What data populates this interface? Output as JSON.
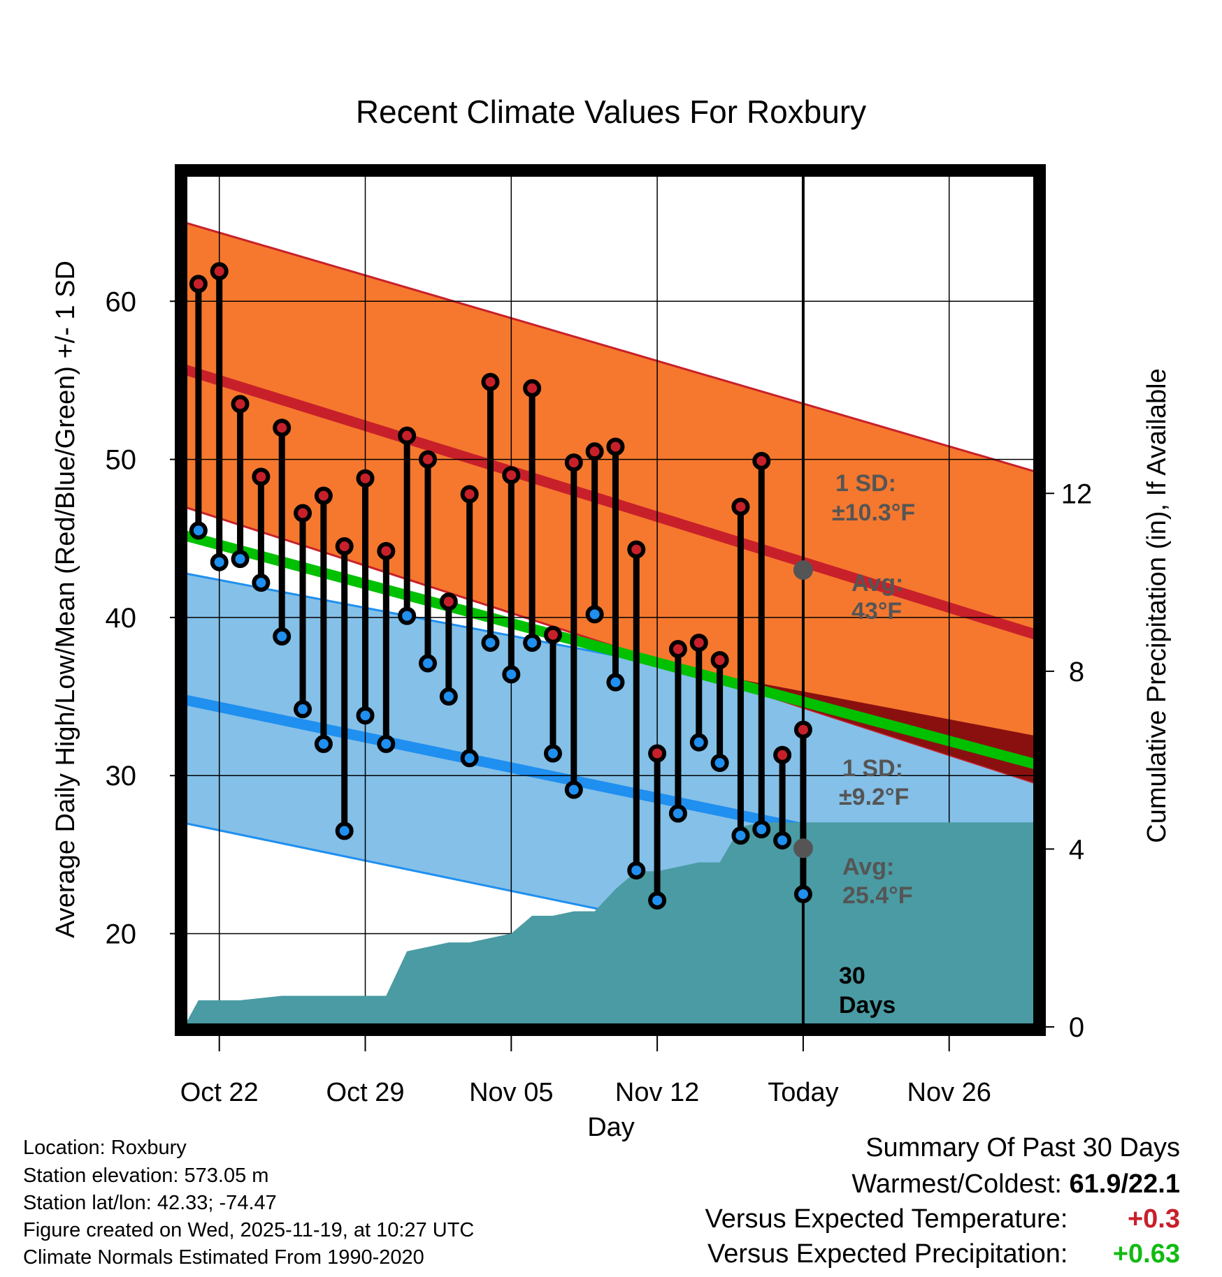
{
  "chart_data": {
    "type": "line",
    "title": "Recent Climate Values For Roxbury",
    "xlabel": "Day",
    "ylabel": "Average Daily High/Low/Mean (Red/Blue/Green) +/- 1 SD",
    "y2label": "Cumulative Precipitation (in), If Available",
    "ylim": [
      14.1,
      68.1
    ],
    "y2lim": [
      0,
      19.2
    ],
    "yticks": [
      20,
      30,
      40,
      50,
      60
    ],
    "y2ticks": [
      0,
      4,
      8,
      12
    ],
    "xlim": [
      -0.7,
      40.2
    ],
    "xtick_days": [
      1,
      8,
      15,
      22,
      29,
      36
    ],
    "xtick_labels": [
      "Oct 22",
      "Oct 29",
      "Nov 05",
      "Nov 12",
      "Today",
      "Nov 26"
    ],
    "today_day": 29,
    "normals": {
      "day": [
        -0.7,
        40.2
      ],
      "high_mean": [
        55.7,
        38.9
      ],
      "high_upper": [
        65.0,
        49.2
      ],
      "high_lower": [
        47.0,
        29.5
      ],
      "low_mean": [
        34.8,
        23.6
      ],
      "low_upper": [
        42.8,
        32.5
      ],
      "low_lower": [
        27.0,
        15.8
      ],
      "mean": [
        45.2,
        30.7
      ]
    },
    "series": [
      {
        "name": "Daily High",
        "color": "#c8202a",
        "day": [
          0,
          1,
          2,
          3,
          4,
          5,
          6,
          7,
          8,
          9,
          10,
          11,
          12,
          13,
          14,
          15,
          16,
          17,
          18,
          19,
          20,
          21,
          22,
          23,
          24,
          25,
          26,
          27,
          28
        ],
        "values": [
          61.1,
          61.9,
          53.5,
          48.9,
          52.0,
          46.6,
          47.7,
          44.5,
          48.8,
          44.2,
          51.5,
          50.0,
          41.0,
          47.8,
          54.9,
          49.0,
          54.5,
          38.9,
          49.8,
          50.5,
          50.8,
          44.3,
          31.4,
          38.0,
          38.4,
          37.3,
          47.0,
          49.9,
          31.3
        ]
      },
      {
        "name": "Daily Low",
        "color": "#1f8ff0",
        "day": [
          0,
          1,
          2,
          3,
          4,
          5,
          6,
          7,
          8,
          9,
          10,
          11,
          12,
          13,
          14,
          15,
          16,
          17,
          18,
          19,
          20,
          21,
          22,
          23,
          24,
          25,
          26,
          27,
          28
        ],
        "values": [
          45.5,
          43.5,
          43.7,
          42.2,
          38.8,
          34.2,
          32.0,
          26.5,
          33.8,
          32.0,
          40.1,
          37.1,
          35.0,
          31.1,
          38.4,
          36.4,
          38.4,
          31.4,
          29.1,
          40.2,
          35.9,
          24.0,
          22.1,
          27.6,
          32.1,
          30.8,
          26.2,
          26.6,
          25.9
        ]
      },
      {
        "name": "Extra High",
        "day": [
          29
        ],
        "values": [
          32.9
        ]
      },
      {
        "name": "Extra Low",
        "day": [
          29
        ],
        "values": [
          22.5
        ]
      }
    ],
    "precipitation": {
      "name": "Cumulative Precipitation",
      "color": "#4a9ba3",
      "day": [
        -0.7,
        0,
        2,
        4,
        5,
        6,
        7,
        8,
        9,
        10,
        11,
        12,
        13,
        14,
        15,
        16,
        17,
        18,
        19,
        20,
        21,
        22,
        23,
        24,
        25,
        26,
        27,
        28,
        29,
        40.2
      ],
      "values": [
        0,
        0.6,
        0.6,
        0.7,
        0.7,
        0.7,
        0.7,
        0.7,
        0.7,
        1.7,
        1.8,
        1.9,
        1.9,
        2.0,
        2.1,
        2.5,
        2.5,
        2.6,
        2.6,
        3.1,
        3.5,
        3.5,
        3.6,
        3.7,
        3.7,
        4.5,
        4.6,
        4.6,
        4.6,
        4.6
      ]
    },
    "annotations": {
      "high_sd": "1 SD:",
      "high_sd_val": "±10.3°F",
      "high_avg": "Avg:",
      "high_avg_val": "43°F",
      "low_sd": "1 SD:",
      "low_sd_val": "±9.2°F",
      "low_avg": "Avg:",
      "low_avg_val": "25.4°F",
      "days_num": "30",
      "days_label": "Days"
    },
    "annotation_values": {
      "high_avg": 43.0,
      "low_avg": 25.4
    },
    "colors": {
      "high_band": "#f5782e",
      "high_line": "#c8202a",
      "low_band": "#84c0e8",
      "low_line": "#1f8ff0",
      "mean_line": "#00c000",
      "overlap": "#8a1010",
      "note": "#555555"
    }
  },
  "info": {
    "location": "Location: Roxbury",
    "elevation": "Station elevation: 573.05 m",
    "latlon": "Station lat/lon: 42.33; -74.47",
    "created": "Figure created on Wed, 2025-11-19, at 10:27 UTC",
    "normals": "Climate Normals Estimated From 1990-2020"
  },
  "summary": {
    "title": "Summary Of Past 30 Days",
    "warmest_label": "Warmest/Coldest:",
    "warmest_value": "61.9/22.1",
    "temp_label": "Versus Expected Temperature:",
    "temp_value": "+0.3",
    "temp_color": "#c8202a",
    "precip_label": "Versus Expected Precipitation:",
    "precip_value": "+0.63",
    "precip_color": "#11bb11"
  }
}
